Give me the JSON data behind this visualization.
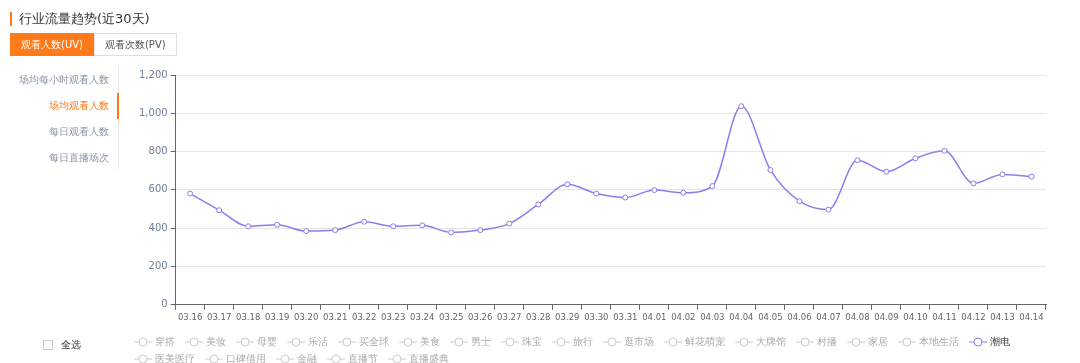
{
  "chart_data": {
    "type": "line",
    "title": "行业流量趋势(近30天)",
    "annotations": [
      "观看人数(UV)",
      "观看次数(PV)",
      "场均每小时观看人数",
      "场均观看人数",
      "每日观看人数",
      "每日直播场次",
      "全选"
    ],
    "categories": [
      "03.16",
      "03.17",
      "03.18",
      "03.19",
      "03.20",
      "03.21",
      "03.22",
      "03.23",
      "03.24",
      "03.25",
      "03.26",
      "03.27",
      "03.28",
      "03.29",
      "03.30",
      "03.31",
      "04.01",
      "04.02",
      "04.03",
      "04.04",
      "04.05",
      "04.06",
      "04.07",
      "04.08",
      "04.09",
      "04.10",
      "04.11",
      "04.12",
      "04.13",
      "04.14"
    ],
    "series": [
      {
        "name": "穿搭",
        "color": "#cccccc",
        "values": [
          null,
          null,
          null,
          null,
          null,
          null,
          null,
          null,
          null,
          null,
          null,
          null,
          null,
          null,
          null,
          null,
          null,
          null,
          null,
          null,
          null,
          null,
          null,
          null,
          null,
          null,
          null,
          null,
          null,
          null
        ]
      },
      {
        "name": "美妆",
        "color": "#cccccc",
        "values": [
          null,
          null,
          null,
          null,
          null,
          null,
          null,
          null,
          null,
          null,
          null,
          null,
          null,
          null,
          null,
          null,
          null,
          null,
          null,
          null,
          null,
          null,
          null,
          null,
          null,
          null,
          null,
          null,
          null,
          null
        ]
      },
      {
        "name": "母婴",
        "color": "#cccccc",
        "values": [
          null,
          null,
          null,
          null,
          null,
          null,
          null,
          null,
          null,
          null,
          null,
          null,
          null,
          null,
          null,
          null,
          null,
          null,
          null,
          null,
          null,
          null,
          null,
          null,
          null,
          null,
          null,
          null,
          null,
          null
        ]
      },
      {
        "name": "乐活",
        "color": "#cccccc",
        "values": [
          null,
          null,
          null,
          null,
          null,
          null,
          null,
          null,
          null,
          null,
          null,
          null,
          null,
          null,
          null,
          null,
          null,
          null,
          null,
          null,
          null,
          null,
          null,
          null,
          null,
          null,
          null,
          null,
          null,
          null
        ]
      },
      {
        "name": "买全球",
        "color": "#cccccc",
        "values": [
          null,
          null,
          null,
          null,
          null,
          null,
          null,
          null,
          null,
          null,
          null,
          null,
          null,
          null,
          null,
          null,
          null,
          null,
          null,
          null,
          null,
          null,
          null,
          null,
          null,
          null,
          null,
          null,
          null,
          null
        ]
      },
      {
        "name": "美食",
        "color": "#cccccc",
        "values": [
          null,
          null,
          null,
          null,
          null,
          null,
          null,
          null,
          null,
          null,
          null,
          null,
          null,
          null,
          null,
          null,
          null,
          null,
          null,
          null,
          null,
          null,
          null,
          null,
          null,
          null,
          null,
          null,
          null,
          null
        ]
      },
      {
        "name": "男士",
        "color": "#cccccc",
        "values": [
          null,
          null,
          null,
          null,
          null,
          null,
          null,
          null,
          null,
          null,
          null,
          null,
          null,
          null,
          null,
          null,
          null,
          null,
          null,
          null,
          null,
          null,
          null,
          null,
          null,
          null,
          null,
          null,
          null,
          null
        ]
      },
      {
        "name": "珠宝",
        "color": "#cccccc",
        "values": [
          null,
          null,
          null,
          null,
          null,
          null,
          null,
          null,
          null,
          null,
          null,
          null,
          null,
          null,
          null,
          null,
          null,
          null,
          null,
          null,
          null,
          null,
          null,
          null,
          null,
          null,
          null,
          null,
          null,
          null
        ]
      },
      {
        "name": "旅行",
        "color": "#cccccc",
        "values": [
          null,
          null,
          null,
          null,
          null,
          null,
          null,
          null,
          null,
          null,
          null,
          null,
          null,
          null,
          null,
          null,
          null,
          null,
          null,
          null,
          null,
          null,
          null,
          null,
          null,
          null,
          null,
          null,
          null,
          null
        ]
      },
      {
        "name": "逛市场",
        "color": "#cccccc",
        "values": [
          null,
          null,
          null,
          null,
          null,
          null,
          null,
          null,
          null,
          null,
          null,
          null,
          null,
          null,
          null,
          null,
          null,
          null,
          null,
          null,
          null,
          null,
          null,
          null,
          null,
          null,
          null,
          null,
          null,
          null
        ]
      },
      {
        "name": "鲜花萌宠",
        "color": "#cccccc",
        "values": [
          null,
          null,
          null,
          null,
          null,
          null,
          null,
          null,
          null,
          null,
          null,
          null,
          null,
          null,
          null,
          null,
          null,
          null,
          null,
          null,
          null,
          null,
          null,
          null,
          null,
          null,
          null,
          null,
          null,
          null
        ]
      },
      {
        "name": "大牌馆",
        "color": "#cccccc",
        "values": [
          null,
          null,
          null,
          null,
          null,
          null,
          null,
          null,
          null,
          null,
          null,
          null,
          null,
          null,
          null,
          null,
          null,
          null,
          null,
          null,
          null,
          null,
          null,
          null,
          null,
          null,
          null,
          null,
          null,
          null
        ]
      },
      {
        "name": "村播",
        "color": "#cccccc",
        "values": [
          null,
          null,
          null,
          null,
          null,
          null,
          null,
          null,
          null,
          null,
          null,
          null,
          null,
          null,
          null,
          null,
          null,
          null,
          null,
          null,
          null,
          null,
          null,
          null,
          null,
          null,
          null,
          null,
          null,
          null
        ]
      },
      {
        "name": "家居",
        "color": "#cccccc",
        "values": [
          null,
          null,
          null,
          null,
          null,
          null,
          null,
          null,
          null,
          null,
          null,
          null,
          null,
          null,
          null,
          null,
          null,
          null,
          null,
          null,
          null,
          null,
          null,
          null,
          null,
          null,
          null,
          null,
          null,
          null
        ]
      },
      {
        "name": "本地生活",
        "color": "#cccccc",
        "values": [
          null,
          null,
          null,
          null,
          null,
          null,
          null,
          null,
          null,
          null,
          null,
          null,
          null,
          null,
          null,
          null,
          null,
          null,
          null,
          null,
          null,
          null,
          null,
          null,
          null,
          null,
          null,
          null,
          null,
          null
        ]
      },
      {
        "name": "潮电",
        "color": "#8c7cf0",
        "values": [
          581,
          494,
          410,
          418,
          385,
          390,
          434,
          410,
          415,
          378,
          390,
          424,
          524,
          629,
          581,
          560,
          599,
          585,
          620,
          1037,
          704,
          541,
          497,
          755,
          695,
          765,
          804,
          634,
          681,
          669
        ]
      },
      {
        "name": "医美医疗",
        "color": "#cccccc",
        "values": [
          null,
          null,
          null,
          null,
          null,
          null,
          null,
          null,
          null,
          null,
          null,
          null,
          null,
          null,
          null,
          null,
          null,
          null,
          null,
          null,
          null,
          null,
          null,
          null,
          null,
          null,
          null,
          null,
          null,
          null
        ]
      },
      {
        "name": "口碑借用",
        "color": "#cccccc",
        "values": [
          null,
          null,
          null,
          null,
          null,
          null,
          null,
          null,
          null,
          null,
          null,
          null,
          null,
          null,
          null,
          null,
          null,
          null,
          null,
          null,
          null,
          null,
          null,
          null,
          null,
          null,
          null,
          null,
          null,
          null
        ]
      },
      {
        "name": "金融",
        "color": "#cccccc",
        "values": [
          null,
          null,
          null,
          null,
          null,
          null,
          null,
          null,
          null,
          null,
          null,
          null,
          null,
          null,
          null,
          null,
          null,
          null,
          null,
          null,
          null,
          null,
          null,
          null,
          null,
          null,
          null,
          null,
          null,
          null
        ]
      },
      {
        "name": "直播节",
        "color": "#cccccc",
        "values": [
          null,
          null,
          null,
          null,
          null,
          null,
          null,
          null,
          null,
          null,
          null,
          null,
          null,
          null,
          null,
          null,
          null,
          null,
          null,
          null,
          null,
          null,
          null,
          null,
          null,
          null,
          null,
          null,
          null,
          null
        ]
      },
      {
        "name": "直播盛典",
        "color": "#cccccc",
        "values": [
          null,
          null,
          null,
          null,
          null,
          null,
          null,
          null,
          null,
          null,
          null,
          null,
          null,
          null,
          null,
          null,
          null,
          null,
          null,
          null,
          null,
          null,
          null,
          null,
          null,
          null,
          null,
          null,
          null,
          null
        ]
      }
    ],
    "ylim": [
      0,
      1200
    ],
    "yticks": [
      0,
      200,
      400,
      600,
      800,
      {
        "value": 1000,
        "label": "1,000"
      },
      {
        "value": 1200,
        "label": "1,200"
      }
    ],
    "grid": "y",
    "legend": "bottom",
    "marker": "circle",
    "line_style": "solid"
  }
}
